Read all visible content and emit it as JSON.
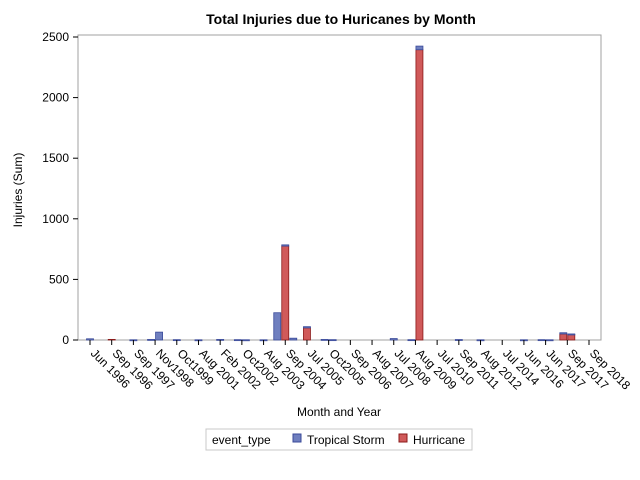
{
  "chart_data": {
    "type": "bar",
    "stacked": true,
    "title": "Total Injuries due to Huricanes by Month",
    "xlabel": "Month and Year",
    "ylabel": "Injuries (Sum)",
    "ylim": [
      0,
      2500
    ],
    "yticks": [
      0,
      500,
      1000,
      1500,
      2000,
      2500
    ],
    "grid": false,
    "legend": {
      "placement": "bottom",
      "title": "event_type",
      "entries": [
        "Tropical Storm",
        "Hurricane"
      ]
    },
    "categories": [
      "Jun 1996",
      "Sep 1996",
      "Sep 1997",
      "Nov 1998",
      "Oct 1999",
      "Aug 2001",
      "Feb 2002",
      "Oct 2002",
      "Aug 2003",
      "Sep 2004",
      "Jul 2005",
      "Oct 2005",
      "Sep 2006",
      "Aug 2007",
      "Jul 2008",
      "Aug 2009",
      "Jul 2010",
      "Sep 2011",
      "Aug 2012",
      "Jul 2014",
      "Jun 2016",
      "Jun 2017",
      "Sep 2017",
      "Sep 2018"
    ],
    "tick_labels": [
      "Jun 1996",
      "Sep 1996",
      "Sep 1997",
      "Nov1998",
      "Oct1999",
      "Aug 2001",
      "Feb 2002",
      "Oct2002",
      "Aug 2003",
      "Sep 2004",
      "Jul 2005",
      "Oct2005",
      "Sep 2006",
      "Aug 2007",
      "Jul 2008",
      "Aug 2009",
      "Jul 2010",
      "Sep 2011",
      "Aug 2012",
      "Jul 2014",
      "Jun 2016",
      "Jun 2017",
      "Sep 2017",
      "Sep 2018"
    ],
    "bars": [
      {
        "category": "Jun 1996",
        "ts": 10,
        "h": 0
      },
      {
        "category": "Sep 1996",
        "ts": 0,
        "h": 5
      },
      {
        "category": "Sep 1997",
        "ts": 2,
        "h": 0
      },
      {
        "category": "Nov 1998",
        "ts": 5,
        "h": 0
      },
      {
        "category": "Nov 1998",
        "ts": 65,
        "h": 0
      },
      {
        "category": "Oct 1999",
        "ts": 3,
        "h": 0
      },
      {
        "category": "Aug 2001",
        "ts": 2,
        "h": 0
      },
      {
        "category": "Feb 2002",
        "ts": 5,
        "h": 0
      },
      {
        "category": "Oct 2002",
        "ts": 3,
        "h": 0
      },
      {
        "category": "Oct 2002",
        "ts": 2,
        "h": 0
      },
      {
        "category": "Aug 2003",
        "ts": 2,
        "h": 0
      },
      {
        "category": "Sep 2004",
        "ts": 225,
        "h": 0
      },
      {
        "category": "Sep 2004",
        "ts": 10,
        "h": 775
      },
      {
        "category": "Sep 2004",
        "ts": 15,
        "h": 0
      },
      {
        "category": "Jul 2005",
        "ts": 10,
        "h": 100
      },
      {
        "category": "Oct 2005",
        "ts": 5,
        "h": 0
      },
      {
        "category": "Oct 2005",
        "ts": 3,
        "h": 0
      },
      {
        "category": "Jul 2008",
        "ts": 12,
        "h": 0
      },
      {
        "category": "Aug 2009",
        "ts": 3,
        "h": 0
      },
      {
        "category": "Aug 2009",
        "ts": 30,
        "h": 2395
      },
      {
        "category": "Sep 2011",
        "ts": 4,
        "h": 0
      },
      {
        "category": "Aug 2012",
        "ts": 2,
        "h": 0
      },
      {
        "category": "Jun 2016",
        "ts": 2,
        "h": 0
      },
      {
        "category": "Jun 2017",
        "ts": 3,
        "h": 0
      },
      {
        "category": "Jun 2017",
        "ts": 2,
        "h": 0
      },
      {
        "category": "Sep 2017",
        "ts": 10,
        "h": 50
      },
      {
        "category": "Sep 2017",
        "ts": 5,
        "h": 45
      }
    ],
    "colors": {
      "tropical_storm": "#6f7fbf",
      "tropical_storm_edge": "#3a4a9a",
      "hurricane": "#d05a5a",
      "hurricane_edge": "#8b1a1a",
      "frame": "#a0a0a0"
    }
  }
}
